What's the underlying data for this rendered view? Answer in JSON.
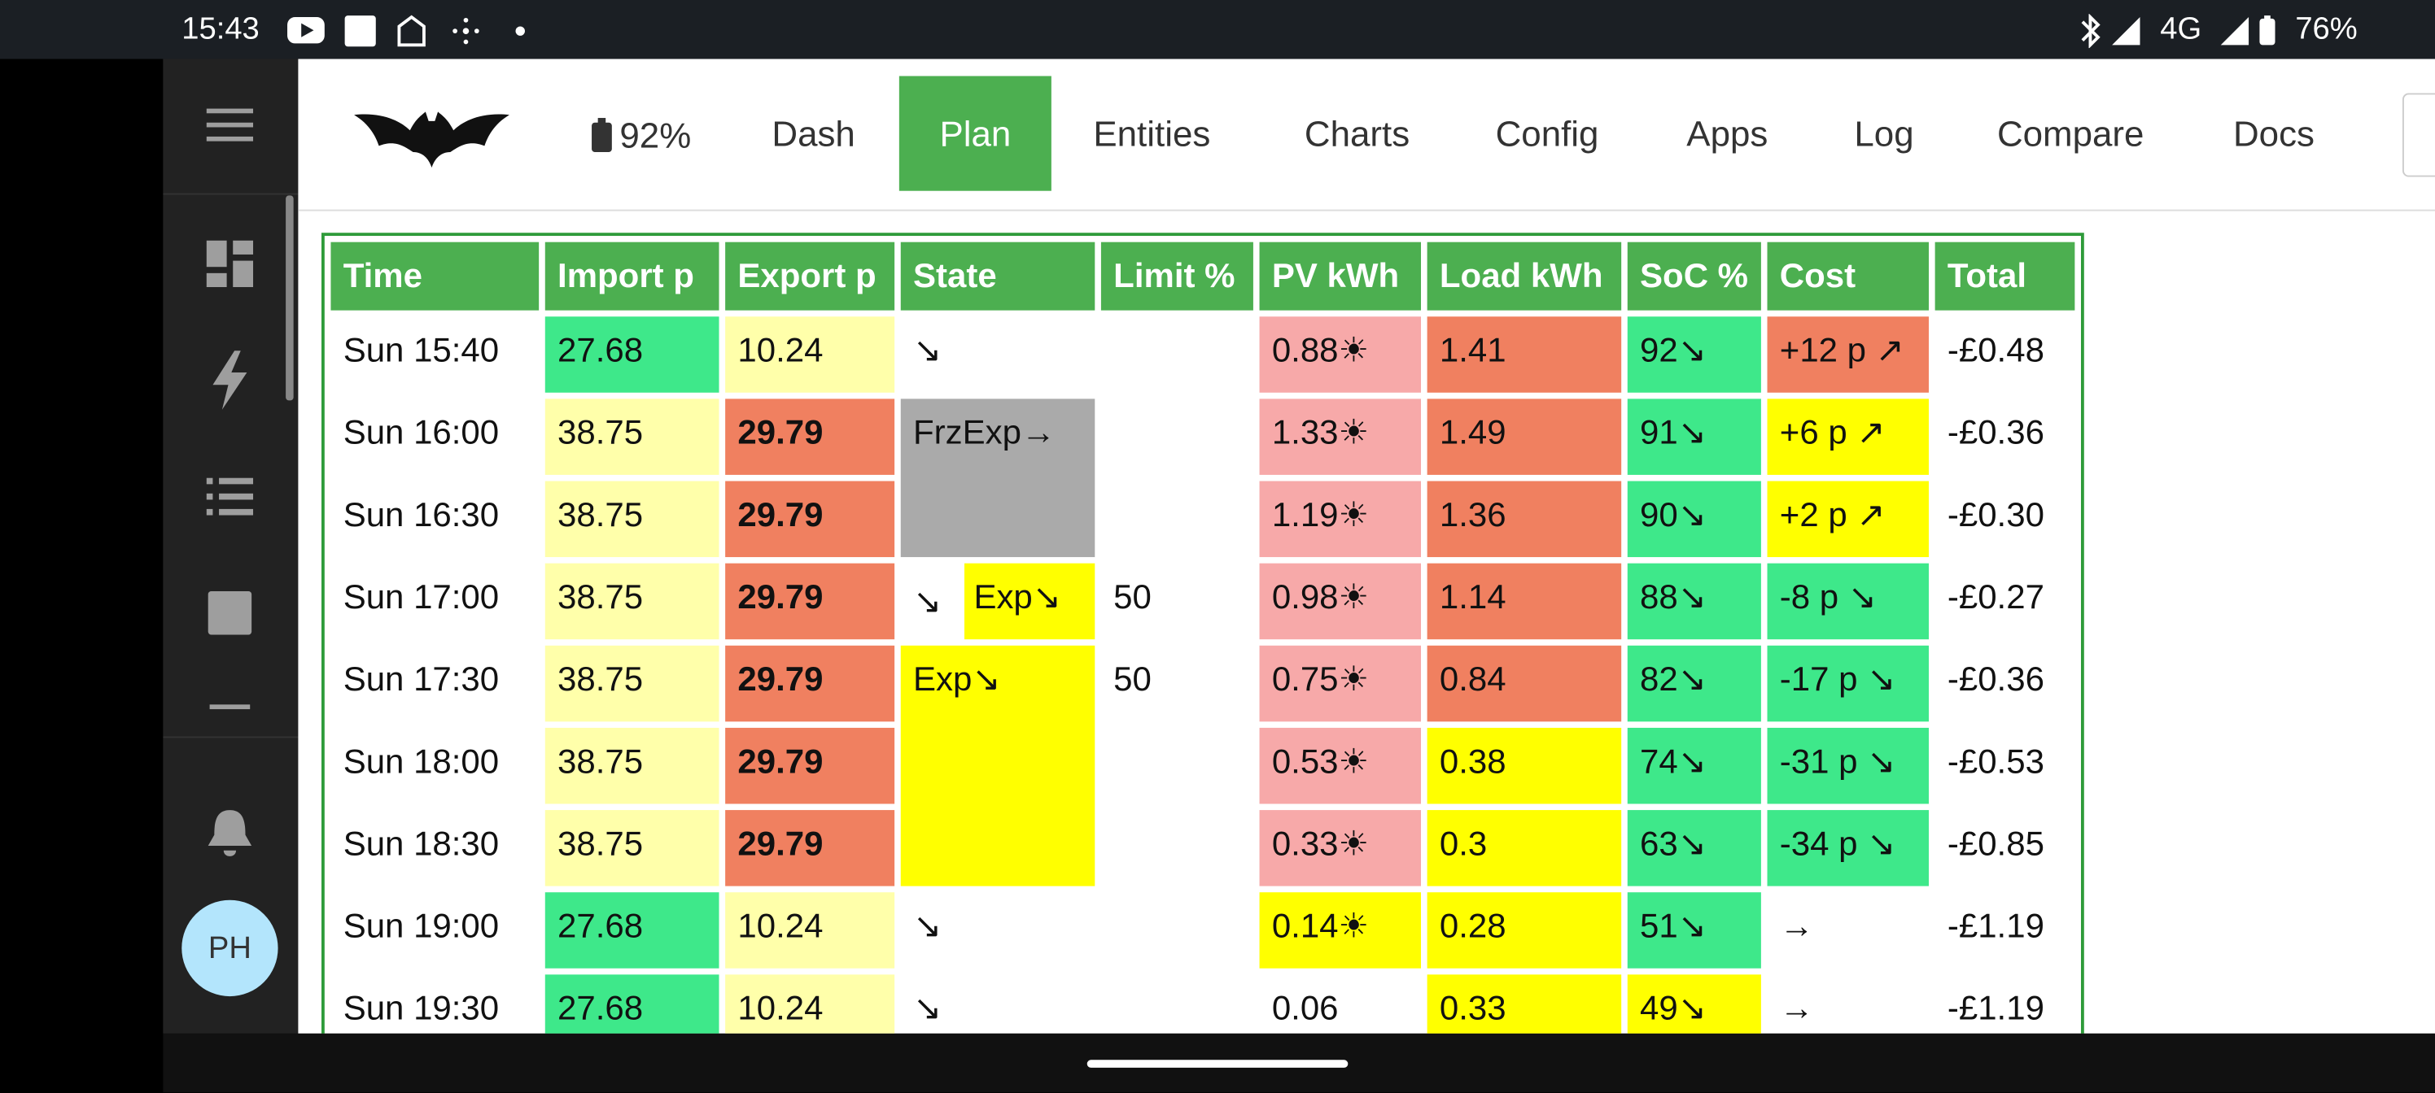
{
  "status_bar": {
    "time": "15:43",
    "network": "4G",
    "battery": "76%"
  },
  "sidebar": {
    "avatar": "PH"
  },
  "nav": {
    "battery": "92%",
    "tabs": [
      "Dash",
      "Plan",
      "Entities",
      "Charts",
      "Config",
      "Apps",
      "Log",
      "Compare",
      "Docs"
    ],
    "active": 1
  },
  "table": {
    "headers": [
      "Time",
      "Import p",
      "Export p",
      "State",
      "Limit %",
      "PV kWh",
      "Load kWh",
      "SoC %",
      "Cost",
      "Total"
    ],
    "rows": [
      [
        {
          "text": "Sun 15:40"
        },
        {
          "text": "27.68",
          "bg": "#3ee88a"
        },
        {
          "text": "10.24",
          "bg": "#ffffaa"
        },
        {
          "text": "↘"
        },
        null,
        {
          "text": "0.88☀",
          "bg": "#f7a9a9"
        },
        {
          "text": "1.41",
          "bg": "#f08060"
        },
        {
          "text": "92↘",
          "bg": "#3ee88a"
        },
        {
          "text": "+12 p ↗",
          "bg": "#f08060"
        },
        {
          "text": "-£0.48"
        }
      ],
      [
        {
          "text": "Sun 16:00"
        },
        {
          "text": "38.75",
          "bg": "#ffffaa"
        },
        {
          "text": "29.79",
          "bg": "#f08060",
          "bold": true
        },
        {
          "text": "FrzExp→",
          "bg": "#aaaaaa",
          "rowspan": 2
        },
        null,
        {
          "text": "1.33☀",
          "bg": "#f7a9a9"
        },
        {
          "text": "1.49",
          "bg": "#f08060"
        },
        {
          "text": "91↘",
          "bg": "#3ee88a"
        },
        {
          "text": "+6 p ↗",
          "bg": "#ffff00"
        },
        {
          "text": "-£0.36"
        }
      ],
      [
        {
          "text": "Sun 16:30"
        },
        {
          "text": "38.75",
          "bg": "#ffffaa"
        },
        {
          "text": "29.79",
          "bg": "#f08060",
          "bold": true
        },
        null,
        {
          "text": "1.19☀",
          "bg": "#f7a9a9"
        },
        {
          "text": "1.36",
          "bg": "#f08060"
        },
        {
          "text": "90↘",
          "bg": "#3ee88a"
        },
        {
          "text": "+2 p ↗",
          "bg": "#ffff00"
        },
        {
          "text": "-£0.30"
        }
      ],
      [
        {
          "text": "Sun 17:00"
        },
        {
          "text": "38.75",
          "bg": "#ffffaa"
        },
        {
          "text": "29.79",
          "bg": "#f08060",
          "bold": true
        },
        {
          "text": "↘",
          "badge": "Exp↘",
          "badge_bg": "#ffff00"
        },
        {
          "text": "50"
        },
        {
          "text": "0.98☀",
          "bg": "#f7a9a9"
        },
        {
          "text": "1.14",
          "bg": "#f08060"
        },
        {
          "text": "88↘",
          "bg": "#3ee88a"
        },
        {
          "text": "-8 p ↘",
          "bg": "#3ee88a"
        },
        {
          "text": "-£0.27"
        }
      ],
      [
        {
          "text": "Sun 17:30"
        },
        {
          "text": "38.75",
          "bg": "#ffffaa"
        },
        {
          "text": "29.79",
          "bg": "#f08060",
          "bold": true
        },
        {
          "text": "Exp↘",
          "bg": "#ffff00",
          "rowspan": 3
        },
        {
          "text": "50"
        },
        {
          "text": "0.75☀",
          "bg": "#f7a9a9"
        },
        {
          "text": "0.84",
          "bg": "#f08060"
        },
        {
          "text": "82↘",
          "bg": "#3ee88a"
        },
        {
          "text": "-17 p ↘",
          "bg": "#3ee88a"
        },
        {
          "text": "-£0.36"
        }
      ],
      [
        {
          "text": "Sun 18:00"
        },
        {
          "text": "38.75",
          "bg": "#ffffaa"
        },
        {
          "text": "29.79",
          "bg": "#f08060",
          "bold": true
        },
        null,
        {
          "text": "0.53☀",
          "bg": "#f7a9a9"
        },
        {
          "text": "0.38",
          "bg": "#ffff00"
        },
        {
          "text": "74↘",
          "bg": "#3ee88a"
        },
        {
          "text": "-31 p ↘",
          "bg": "#3ee88a"
        },
        {
          "text": "-£0.53"
        }
      ],
      [
        {
          "text": "Sun 18:30"
        },
        {
          "text": "38.75",
          "bg": "#ffffaa"
        },
        {
          "text": "29.79",
          "bg": "#f08060",
          "bold": true
        },
        null,
        {
          "text": "0.33☀",
          "bg": "#f7a9a9"
        },
        {
          "text": "0.3",
          "bg": "#ffff00"
        },
        {
          "text": "63↘",
          "bg": "#3ee88a"
        },
        {
          "text": "-34 p ↘",
          "bg": "#3ee88a"
        },
        {
          "text": "-£0.85"
        }
      ],
      [
        {
          "text": "Sun 19:00"
        },
        {
          "text": "27.68",
          "bg": "#3ee88a"
        },
        {
          "text": "10.24",
          "bg": "#ffffaa"
        },
        {
          "text": "↘"
        },
        null,
        {
          "text": "0.14☀",
          "bg": "#ffff00"
        },
        {
          "text": "0.28",
          "bg": "#ffff00"
        },
        {
          "text": "51↘",
          "bg": "#3ee88a"
        },
        {
          "text": "→"
        },
        {
          "text": "-£1.19"
        }
      ],
      [
        {
          "text": "Sun 19:30"
        },
        {
          "text": "27.68",
          "bg": "#3ee88a"
        },
        {
          "text": "10.24",
          "bg": "#ffffaa"
        },
        {
          "text": "↘"
        },
        null,
        {
          "text": "0.06"
        },
        {
          "text": "0.33",
          "bg": "#ffff00"
        },
        {
          "text": "49↘",
          "bg": "#ffff00"
        },
        {
          "text": "→"
        },
        {
          "text": "-£1.19"
        }
      ]
    ]
  }
}
